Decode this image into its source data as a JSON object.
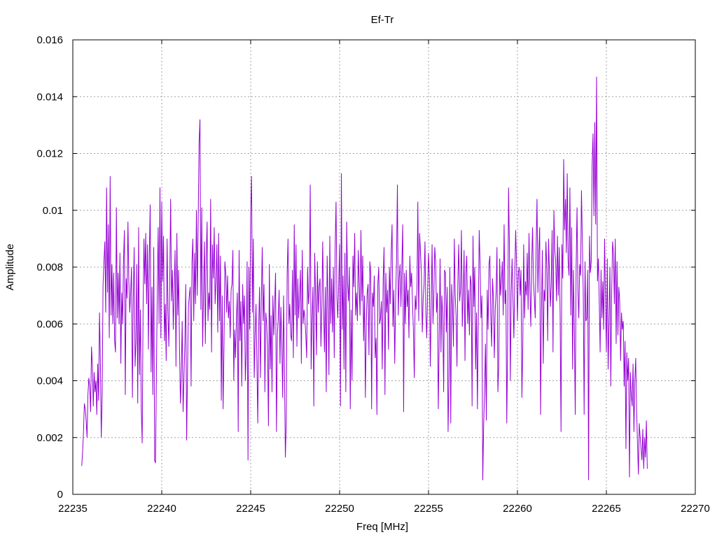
{
  "chart_data": {
    "type": "line",
    "title": "Ef-Tr",
    "xlabel": "Freq [MHz]",
    "ylabel": "Amplitude",
    "xlim": [
      22235,
      22270
    ],
    "ylim": [
      0,
      0.016
    ],
    "x_ticks": [
      22235,
      22240,
      22245,
      22250,
      22255,
      22260,
      22265,
      22270
    ],
    "x_tick_labels": [
      "22235",
      "22240",
      "22245",
      "22250",
      "22255",
      "22260",
      "22265",
      "22270"
    ],
    "y_ticks": [
      0,
      0.002,
      0.004,
      0.006,
      0.008,
      0.01,
      0.012,
      0.014,
      0.016
    ],
    "y_tick_labels": [
      "0",
      "0.002",
      "0.004",
      "0.006",
      "0.008",
      "0.01",
      "0.012",
      "0.014",
      "0.016"
    ],
    "grid": true,
    "legend": "none",
    "series": [
      {
        "color": "#9400d3",
        "x_start": 22235.5,
        "x_step": 0.05,
        "values": [
          0.001,
          0.0015,
          0.0022,
          0.0032,
          0.003,
          0.0026,
          0.002,
          0.0035,
          0.0041,
          0.0038,
          0.0029,
          0.0052,
          0.0045,
          0.0031,
          0.0043,
          0.0036,
          0.004,
          0.0028,
          0.0046,
          0.0033,
          0.0064,
          0.0047,
          0.002,
          0.0035,
          0.0074,
          0.0082,
          0.0089,
          0.0064,
          0.0108,
          0.0071,
          0.0095,
          0.0055,
          0.0112,
          0.0063,
          0.0081,
          0.006,
          0.0078,
          0.0054,
          0.005,
          0.0101,
          0.0062,
          0.0078,
          0.006,
          0.0085,
          0.0046,
          0.0071,
          0.006,
          0.0082,
          0.0093,
          0.0035,
          0.0076,
          0.0069,
          0.0096,
          0.0075,
          0.0064,
          0.0071,
          0.008,
          0.0034,
          0.0069,
          0.0087,
          0.0045,
          0.0054,
          0.0081,
          0.0032,
          0.0094,
          0.0042,
          0.0065,
          0.003,
          0.0018,
          0.0065,
          0.009,
          0.0074,
          0.0092,
          0.0067,
          0.0088,
          0.0051,
          0.0083,
          0.0102,
          0.0043,
          0.0073,
          0.0035,
          0.0087,
          0.0012,
          0.0011,
          0.0042,
          0.0072,
          0.0094,
          0.006,
          0.0108,
          0.0055,
          0.0103,
          0.0075,
          0.0091,
          0.0054,
          0.0067,
          0.0047,
          0.009,
          0.0064,
          0.0052,
          0.0075,
          0.0104,
          0.0068,
          0.0079,
          0.0058,
          0.0072,
          0.0086,
          0.0045,
          0.0092,
          0.0063,
          0.0079,
          0.0051,
          0.0032,
          0.0043,
          0.0061,
          0.0029,
          0.0041,
          0.0053,
          0.0074,
          0.0019,
          0.0043,
          0.0066,
          0.007,
          0.0073,
          0.0038,
          0.0082,
          0.009,
          0.0061,
          0.0085,
          0.0067,
          0.01,
          0.007,
          0.0097,
          0.0124,
          0.0132,
          0.0065,
          0.0101,
          0.0052,
          0.0071,
          0.0089,
          0.0053,
          0.0083,
          0.0096,
          0.0061,
          0.0071,
          0.0065,
          0.0104,
          0.005,
          0.0088,
          0.0076,
          0.0094,
          0.0067,
          0.0075,
          0.0088,
          0.0057,
          0.0092,
          0.0061,
          0.0084,
          0.0033,
          0.007,
          0.003,
          0.0052,
          0.0082,
          0.0078,
          0.0064,
          0.0077,
          0.0062,
          0.0068,
          0.0055,
          0.0072,
          0.0074,
          0.0086,
          0.004,
          0.0058,
          0.0048,
          0.0062,
          0.0071,
          0.0022,
          0.0086,
          0.0054,
          0.0068,
          0.0038,
          0.0074,
          0.006,
          0.007,
          0.004,
          0.005,
          0.0082,
          0.0012,
          0.008,
          0.0058,
          0.0099,
          0.0112,
          0.0064,
          0.009,
          0.0041,
          0.0056,
          0.0067,
          0.0047,
          0.0025,
          0.0059,
          0.0073,
          0.0041,
          0.0068,
          0.0087,
          0.0061,
          0.0074,
          0.0036,
          0.0064,
          0.006,
          0.0052,
          0.0024,
          0.0081,
          0.0044,
          0.0063,
          0.0036,
          0.007,
          0.0056,
          0.0067,
          0.0078,
          0.0022,
          0.0056,
          0.0062,
          0.0072,
          0.0046,
          0.0066,
          0.0054,
          0.0034,
          0.007,
          0.0044,
          0.0013,
          0.0025,
          0.0077,
          0.009,
          0.006,
          0.0067,
          0.0056,
          0.0054,
          0.0079,
          0.0048,
          0.0095,
          0.0063,
          0.0088,
          0.0052,
          0.0076,
          0.0062,
          0.007,
          0.0079,
          0.0046,
          0.0086,
          0.006,
          0.0065,
          0.0062,
          0.0056,
          0.0048,
          0.008,
          0.0067,
          0.0072,
          0.0109,
          0.0044,
          0.0061,
          0.0073,
          0.0031,
          0.0085,
          0.007,
          0.0049,
          0.0082,
          0.0064,
          0.0073,
          0.0076,
          0.0052,
          0.0065,
          0.0089,
          0.0066,
          0.005,
          0.0073,
          0.0036,
          0.0084,
          0.0069,
          0.0042,
          0.0091,
          0.006,
          0.0076,
          0.0057,
          0.008,
          0.0048,
          0.0087,
          0.0103,
          0.0069,
          0.0062,
          0.0074,
          0.0088,
          0.0031,
          0.0113,
          0.0058,
          0.0077,
          0.0044,
          0.0085,
          0.0036,
          0.0096,
          0.0074,
          0.0068,
          0.008,
          0.003,
          0.0065,
          0.004,
          0.0084,
          0.0073,
          0.0092,
          0.0063,
          0.0071,
          0.0061,
          0.0086,
          0.0074,
          0.0063,
          0.0093,
          0.0068,
          0.0084,
          0.0054,
          0.007,
          0.0034,
          0.006,
          0.0071,
          0.0074,
          0.0049,
          0.0082,
          0.0078,
          0.003,
          0.0071,
          0.0066,
          0.0077,
          0.0048,
          0.0055,
          0.0028,
          0.0074,
          0.008,
          0.006,
          0.0062,
          0.0068,
          0.0044,
          0.0076,
          0.0087,
          0.0035,
          0.0078,
          0.0064,
          0.0072,
          0.0051,
          0.008,
          0.0067,
          0.0085,
          0.0095,
          0.0059,
          0.0072,
          0.0046,
          0.0068,
          0.0082,
          0.0109,
          0.0063,
          0.0076,
          0.0081,
          0.0066,
          0.0081,
          0.0095,
          0.0029,
          0.0078,
          0.006,
          0.0079,
          0.0066,
          0.0072,
          0.0055,
          0.0084,
          0.0073,
          0.0078,
          0.0067,
          0.0058,
          0.0041,
          0.007,
          0.0065,
          0.0072,
          0.0103,
          0.0061,
          0.0092,
          0.0085,
          0.0078,
          0.0057,
          0.0069,
          0.0074,
          0.0089,
          0.0064,
          0.0055,
          0.0072,
          0.0085,
          0.0076,
          0.0045,
          0.0066,
          0.0088,
          0.006,
          0.007,
          0.0087,
          0.0082,
          0.0064,
          0.0071,
          0.003,
          0.0054,
          0.0083,
          0.005,
          0.007,
          0.0063,
          0.0036,
          0.0079,
          0.0078,
          0.0057,
          0.0073,
          0.0022,
          0.004,
          0.008,
          0.0025,
          0.0074,
          0.0066,
          0.0052,
          0.009,
          0.007,
          0.0063,
          0.0045,
          0.0075,
          0.0088,
          0.0068,
          0.0072,
          0.0093,
          0.0059,
          0.007,
          0.0086,
          0.0047,
          0.0078,
          0.0084,
          0.006,
          0.0072,
          0.0056,
          0.0077,
          0.0074,
          0.0031,
          0.0091,
          0.0066,
          0.008,
          0.0044,
          0.0064,
          0.003,
          0.0063,
          0.0093,
          0.0081,
          0.0062,
          0.007,
          0.0005,
          0.0024,
          0.0036,
          0.0053,
          0.0026,
          0.0072,
          0.0058,
          0.0081,
          0.0084,
          0.0063,
          0.0052,
          0.0076,
          0.0069,
          0.0048,
          0.0065,
          0.0071,
          0.0087,
          0.0036,
          0.0045,
          0.0083,
          0.007,
          0.0075,
          0.0082,
          0.0063,
          0.0095,
          0.0067,
          0.0072,
          0.0025,
          0.0054,
          0.0108,
          0.0087,
          0.004,
          0.0071,
          0.0083,
          0.0068,
          0.0055,
          0.0077,
          0.0093,
          0.0081,
          0.0061,
          0.0078,
          0.008,
          0.007,
          0.0079,
          0.0034,
          0.0052,
          0.0088,
          0.0062,
          0.0075,
          0.007,
          0.0085,
          0.0065,
          0.0092,
          0.0072,
          0.0059,
          0.0081,
          0.0094,
          0.0075,
          0.0069,
          0.0062,
          0.0087,
          0.0104,
          0.0071,
          0.0085,
          0.0094,
          0.0028,
          0.0064,
          0.0086,
          0.0046,
          0.0072,
          0.0068,
          0.0089,
          0.008,
          0.0054,
          0.009,
          0.0078,
          0.0066,
          0.0074,
          0.0093,
          0.005,
          0.01,
          0.0086,
          0.0082,
          0.0068,
          0.0091,
          0.007,
          0.0087,
          0.0063,
          0.0022,
          0.0088,
          0.0076,
          0.0118,
          0.0093,
          0.0104,
          0.0085,
          0.0113,
          0.0082,
          0.0077,
          0.0108,
          0.0063,
          0.0094,
          0.0044,
          0.0079,
          0.0058,
          0.0028,
          0.008,
          0.0101,
          0.0072,
          0.0062,
          0.0081,
          0.0077,
          0.0107,
          0.0089,
          0.0071,
          0.0028,
          0.0082,
          0.0061,
          0.0062,
          0.0079,
          0.0005,
          0.0091,
          0.0078,
          0.0082,
          0.0116,
          0.0127,
          0.0098,
          0.0131,
          0.0095,
          0.0147,
          0.0075,
          0.0083,
          0.0068,
          0.005,
          0.0079,
          0.0062,
          0.0075,
          0.0058,
          0.009,
          0.0069,
          0.005,
          0.0083,
          0.0044,
          0.0061,
          0.008,
          0.0038,
          0.0072,
          0.0089,
          0.0085,
          0.0067,
          0.009,
          0.0053,
          0.0082,
          0.0056,
          0.0073,
          0.0068,
          0.0047,
          0.0064,
          0.0058,
          0.0061,
          0.0038,
          0.0054,
          0.0016,
          0.005,
          0.004,
          0.0048,
          0.0006,
          0.0043,
          0.0035,
          0.0031,
          0.0046,
          0.0022,
          0.004,
          0.0048,
          0.003,
          0.0018,
          0.0007,
          0.0025,
          0.002,
          0.0016,
          0.0012,
          0.0023,
          0.0009,
          0.002,
          0.0013,
          0.0026,
          0.0009
        ]
      }
    ]
  }
}
